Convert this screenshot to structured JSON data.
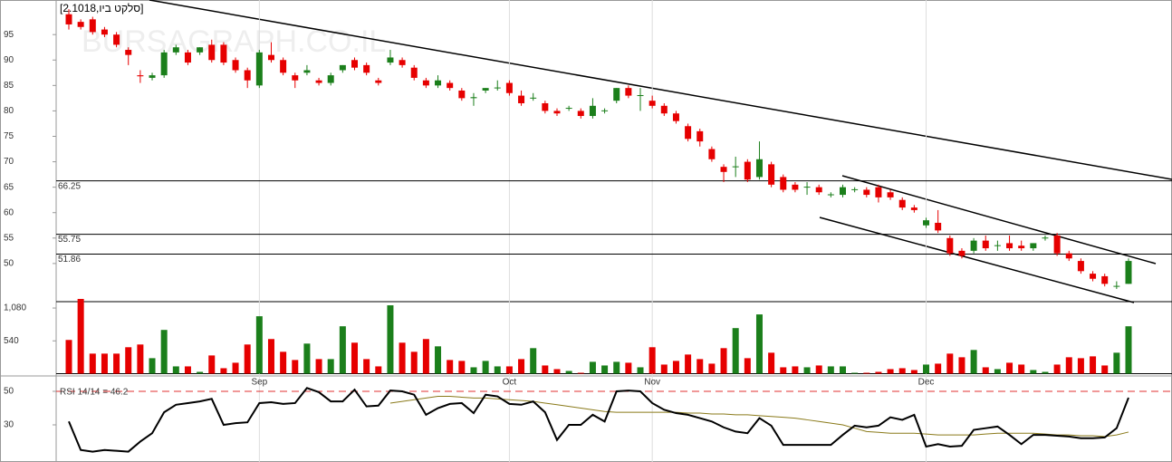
{
  "chart_data": {
    "type": "candlestick",
    "title": "[2.1018,סלקט ביו]",
    "watermark": "BURSAGRAPH.CO.IL",
    "categories": [
      null,
      null,
      null,
      null,
      null,
      null,
      null,
      null,
      null,
      null,
      null,
      null,
      null,
      null,
      null,
      null,
      "Sep",
      null,
      null,
      null,
      null,
      null,
      null,
      null,
      null,
      null,
      null,
      null,
      null,
      null,
      null,
      null,
      null,
      null,
      null,
      null,
      null,
      "Oct",
      null,
      null,
      null,
      null,
      null,
      null,
      null,
      null,
      null,
      null,
      null,
      "Nov",
      null,
      null,
      null,
      null,
      null,
      null,
      null,
      null,
      null,
      null,
      null,
      null,
      null,
      null,
      null,
      null,
      null,
      null,
      null,
      null,
      null,
      null,
      "Dec",
      null,
      null,
      null,
      null,
      null,
      null,
      null,
      null,
      null,
      null,
      null,
      null,
      null,
      null,
      null,
      null,
      null
    ],
    "open": [
      99,
      97.5,
      98,
      96,
      95,
      92,
      87,
      86.5,
      87,
      91.5,
      91.5,
      91.5,
      93,
      93,
      90,
      88,
      85,
      91,
      90,
      87,
      87.5,
      86,
      85.5,
      88,
      90,
      89,
      86,
      89.5,
      90,
      88.5,
      86,
      85,
      85.5,
      84,
      82.5,
      84,
      84.5,
      85.5,
      83,
      82.5,
      81.5,
      80,
      80.5,
      80,
      79,
      80,
      82,
      84.5,
      83,
      82,
      81,
      79.5,
      77,
      76,
      72.5,
      69,
      69,
      70,
      67,
      69.5,
      67,
      65.5,
      65,
      65,
      63.5,
      63.5,
      64.5,
      64.5,
      65,
      64,
      62.5,
      61,
      57.5,
      58,
      55,
      52.5,
      52.5,
      54.5,
      53.5,
      54,
      53.5,
      53,
      55,
      55.5,
      52,
      50.5,
      48,
      47.5,
      45.5,
      46
    ],
    "high": [
      100,
      98,
      98.5,
      96.5,
      95.5,
      92.5,
      88,
      87.5,
      92,
      93,
      92,
      92.5,
      94,
      93.5,
      90.5,
      88.5,
      92,
      93.5,
      90.5,
      87.5,
      89,
      86.5,
      87.5,
      89,
      90.5,
      89.5,
      86.5,
      92,
      90.5,
      89,
      86.5,
      87,
      86,
      84.5,
      83.5,
      84.5,
      86,
      86,
      84,
      83.5,
      82,
      80.5,
      81,
      80.5,
      82.5,
      80.5,
      84.5,
      85,
      84.5,
      83,
      81.5,
      80,
      77.5,
      76.5,
      73,
      69.5,
      71,
      70.5,
      74,
      70,
      67.5,
      66,
      66,
      65.5,
      64,
      65.5,
      65,
      65,
      65.5,
      64.5,
      63,
      61.5,
      59,
      60.5,
      55.5,
      53,
      55,
      55.5,
      54.5,
      55.5,
      54.5,
      54,
      55.5,
      56,
      52.5,
      51,
      48.5,
      48,
      46.5,
      51
    ],
    "low": [
      96,
      96,
      95,
      94.5,
      92.5,
      89,
      85.5,
      86,
      86.5,
      91,
      89,
      91,
      89.5,
      89,
      87.5,
      84.5,
      84.5,
      89.5,
      87,
      84.5,
      87,
      85,
      85,
      87.5,
      88,
      87,
      85,
      89,
      88.5,
      86,
      84.5,
      84.5,
      84,
      82,
      81,
      83.5,
      84,
      83,
      81,
      82,
      79.5,
      79,
      80,
      78.5,
      78.5,
      79.5,
      81.5,
      82.5,
      80,
      80.5,
      79,
      77.5,
      74,
      73,
      70,
      66,
      67,
      66,
      66.5,
      65,
      64,
      64,
      63.5,
      63.5,
      63,
      63,
      64,
      63,
      62,
      62.5,
      60.5,
      60,
      57,
      56,
      51.5,
      51,
      52,
      52.5,
      52.5,
      52.5,
      52.5,
      52.5,
      54.5,
      51.5,
      50.5,
      48,
      46.5,
      45.5,
      45,
      46
    ],
    "close": [
      97,
      96.5,
      95.5,
      95,
      93,
      91,
      86.8,
      87,
      91.5,
      92.5,
      89.5,
      92.5,
      90,
      89.5,
      88,
      86,
      91.5,
      90,
      87.5,
      86,
      88,
      85.5,
      87,
      89,
      88.5,
      87.5,
      85.5,
      90.5,
      89,
      86.5,
      85,
      86,
      84.5,
      82.5,
      82.7,
      84.5,
      84.6,
      83.5,
      81.5,
      82.6,
      80,
      79.5,
      80.6,
      79,
      81,
      80.1,
      84.5,
      83,
      83.1,
      81,
      79.5,
      78,
      74.5,
      74,
      70.5,
      68,
      69.1,
      66.5,
      70.5,
      65.5,
      64.5,
      64.5,
      65.1,
      64,
      63.6,
      65,
      64.6,
      63.5,
      63,
      63,
      61,
      60.5,
      58.5,
      56.5,
      52,
      51.5,
      54.5,
      53,
      53.6,
      53,
      53,
      54,
      55.1,
      52,
      51,
      48.5,
      47,
      46,
      45.6,
      50.5
    ],
    "up_color": "#1b7f1b",
    "down_color": "#e60000",
    "ylim": [
      42.5,
      101.8
    ],
    "yticks": [
      50,
      55,
      60,
      65,
      70,
      75,
      80,
      85,
      90,
      95
    ],
    "levels": [
      66.25,
      55.75,
      51.86
    ],
    "volume": {
      "values": [
        555,
        1230,
        330,
        330,
        330,
        435,
        480,
        255,
        720,
        120,
        120,
        30,
        300,
        90,
        180,
        480,
        945,
        570,
        360,
        225,
        495,
        240,
        240,
        780,
        510,
        240,
        120,
        1125,
        510,
        360,
        570,
        450,
        225,
        210,
        105,
        210,
        120,
        120,
        240,
        420,
        135,
        75,
        45,
        15,
        195,
        135,
        195,
        180,
        105,
        435,
        150,
        210,
        315,
        240,
        165,
        420,
        750,
        255,
        975,
        345,
        105,
        120,
        105,
        135,
        120,
        120,
        15,
        15,
        30,
        75,
        90,
        60,
        150,
        165,
        330,
        270,
        390,
        105,
        75,
        180,
        150,
        60,
        30,
        150,
        270,
        255,
        285,
        135,
        345,
        780
      ],
      "ylim": [
        0,
        1185
      ],
      "yticks": [
        540,
        {
          "value": 1080,
          "label": "1,080"
        }
      ]
    },
    "rsi": {
      "label": "RSI 14/14 = 46.2",
      "values": [
        32,
        15,
        14,
        15,
        14.5,
        14,
        20,
        25,
        37.5,
        42,
        43,
        44,
        45.5,
        30,
        31,
        31.5,
        43,
        43.5,
        42.5,
        43,
        52,
        49.5,
        44,
        44,
        51,
        41,
        41.5,
        50.5,
        50,
        48,
        36,
        40,
        42.5,
        43,
        37,
        48,
        47,
        42.5,
        42,
        44,
        37.5,
        21,
        30,
        30,
        36,
        32,
        50,
        50.5,
        50,
        43,
        39,
        37,
        36,
        34,
        32,
        28.5,
        26,
        25,
        34,
        29.5,
        18,
        18,
        18,
        18,
        18,
        24,
        29.5,
        28.5,
        29.5,
        34.5,
        33,
        36,
        17,
        18.5,
        17,
        17.5,
        27,
        28,
        29,
        24,
        18.5,
        24,
        24,
        23.5,
        23,
        22,
        22,
        22.5,
        28,
        46.2
      ],
      "ma": [
        null,
        null,
        null,
        null,
        null,
        null,
        null,
        null,
        null,
        null,
        null,
        null,
        null,
        null,
        null,
        null,
        null,
        null,
        null,
        null,
        null,
        null,
        null,
        null,
        null,
        null,
        null,
        43,
        44,
        45,
        46,
        47,
        47,
        46.5,
        46,
        46,
        45.5,
        45,
        44.5,
        44,
        43,
        42,
        41,
        40,
        39,
        38,
        37.5,
        37.5,
        37.5,
        37.5,
        37.5,
        37.5,
        37,
        37,
        36.5,
        36.5,
        36,
        36,
        35.5,
        35,
        34.5,
        34,
        33,
        32,
        31,
        30,
        28,
        26,
        25.5,
        25,
        25,
        25,
        24.5,
        24,
        24,
        24,
        24,
        24.5,
        25,
        25,
        25,
        25,
        24.5,
        24,
        24,
        23.5,
        23.5,
        23,
        24,
        25.7
      ],
      "color": "#000000",
      "ma_color": "#8a7a1a",
      "level": 50,
      "level_color": "#e03030",
      "ylim": [
        8.9,
        59.2
      ],
      "yticks": [
        30,
        50
      ]
    }
  }
}
